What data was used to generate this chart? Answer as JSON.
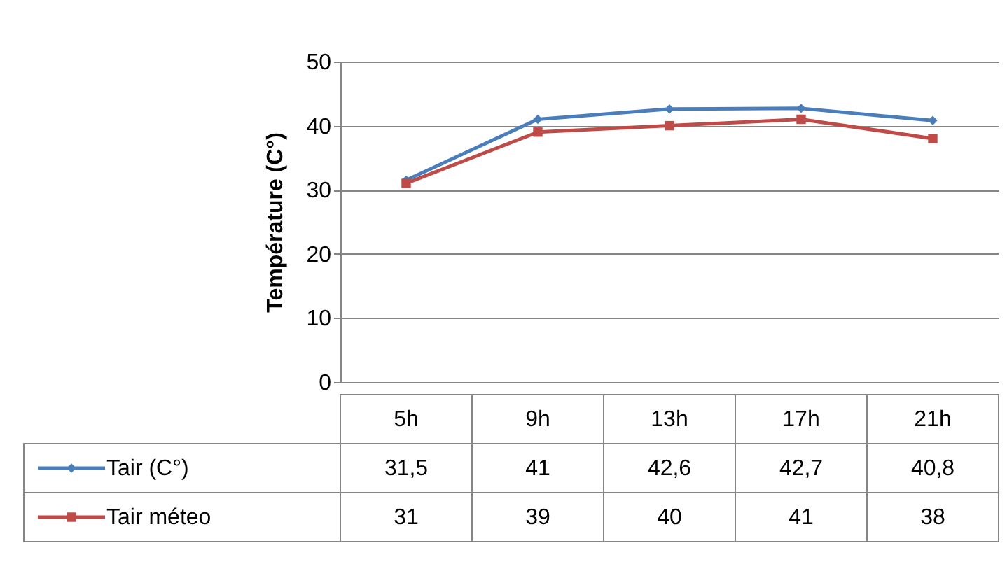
{
  "chart_data": {
    "type": "line",
    "categories": [
      "5h",
      "9h",
      "13h",
      "17h",
      "21h"
    ],
    "ylabel": "Température (C°)",
    "ylim": [
      0,
      50
    ],
    "yticks": [
      0,
      10,
      20,
      30,
      40,
      50
    ],
    "grid": "y",
    "legend": "bottom",
    "series": [
      {
        "name": "Tair (C°)",
        "color": "#4a7ebb",
        "marker": "diamond",
        "values": [
          31.5,
          41,
          42.6,
          42.7,
          40.8
        ],
        "value_labels": [
          "31,5",
          "41",
          "42,6",
          "42,7",
          "40,8"
        ]
      },
      {
        "name": "Tair méteo",
        "color": "#be4b48",
        "marker": "square",
        "values": [
          31,
          39,
          40,
          41,
          38
        ],
        "value_labels": [
          "31",
          "39",
          "40",
          "41",
          "38"
        ]
      }
    ]
  }
}
